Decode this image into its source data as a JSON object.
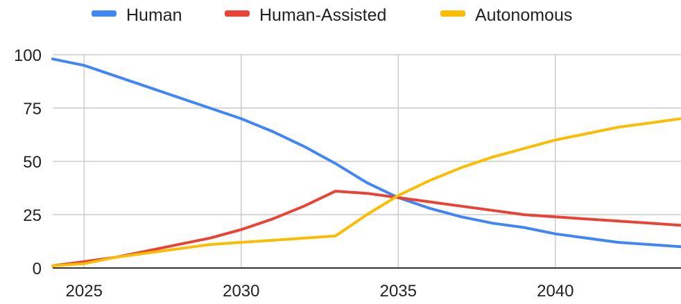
{
  "chart_data": {
    "type": "line",
    "title": "",
    "xlabel": "",
    "ylabel": "",
    "xlim": [
      2024,
      2044
    ],
    "ylim": [
      0,
      100
    ],
    "x_ticks": [
      2025,
      2030,
      2035,
      2040
    ],
    "y_ticks": [
      0,
      25,
      50,
      75,
      100
    ],
    "grid": true,
    "legend_position": "top",
    "x": [
      2024,
      2025,
      2026,
      2027,
      2028,
      2029,
      2030,
      2031,
      2032,
      2033,
      2034,
      2035,
      2036,
      2037,
      2038,
      2039,
      2040,
      2041,
      2042,
      2043,
      2044
    ],
    "series": [
      {
        "name": "Human",
        "color": "#4285F4",
        "values": [
          98,
          95,
          90,
          85,
          80,
          75,
          70,
          64,
          57,
          49,
          40,
          33,
          28,
          24,
          21,
          19,
          16,
          14,
          12,
          11,
          10
        ]
      },
      {
        "name": "Human-Assisted",
        "color": "#EA4335",
        "values": [
          1,
          3,
          5,
          8,
          11,
          14,
          18,
          23,
          29,
          36,
          35,
          33,
          31,
          29,
          27,
          25,
          24,
          23,
          22,
          21,
          20
        ]
      },
      {
        "name": "Autonomous",
        "color": "#FBBC04",
        "values": [
          1,
          2,
          5,
          7,
          9,
          11,
          12,
          13,
          14,
          15,
          25,
          34,
          41,
          47,
          52,
          56,
          60,
          63,
          66,
          68,
          70
        ]
      }
    ]
  }
}
